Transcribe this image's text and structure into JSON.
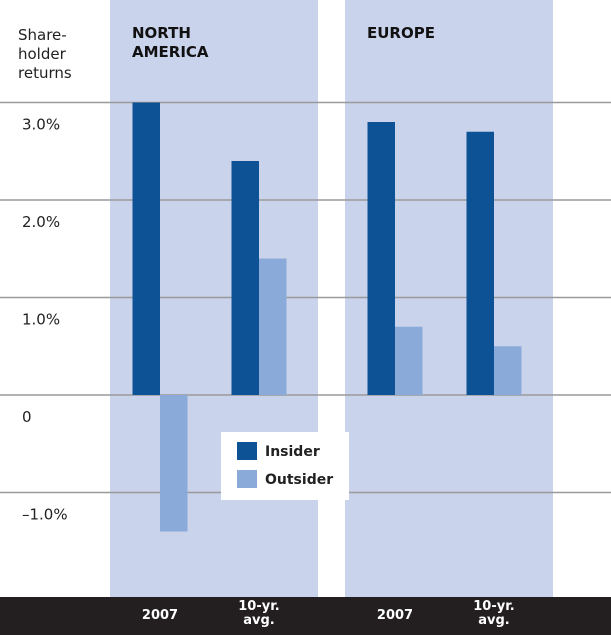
{
  "chart_data": {
    "type": "bar",
    "y_label": "Share-holder returns",
    "groups": [
      "NORTH AMERICA",
      "EUROPE"
    ],
    "categories": [
      "2007",
      "10-yr. avg.",
      "2007",
      "10-yr. avg."
    ],
    "series": [
      {
        "name": "Insider",
        "color": "#0d5294",
        "values": [
          3.0,
          2.4,
          2.8,
          2.7
        ]
      },
      {
        "name": "Outsider",
        "color": "#8aabd9",
        "values": [
          -1.4,
          1.4,
          0.7,
          0.5
        ]
      }
    ],
    "ylim": [
      -2,
      4
    ],
    "yticks": [
      {
        "value": -1,
        "label": "–1.0%"
      },
      0,
      {
        "value": 1,
        "label": "1.0%"
      },
      {
        "value": 2,
        "label": "2.0%"
      },
      {
        "value": 3,
        "label": "3.0%"
      }
    ],
    "grid": true
  }
}
